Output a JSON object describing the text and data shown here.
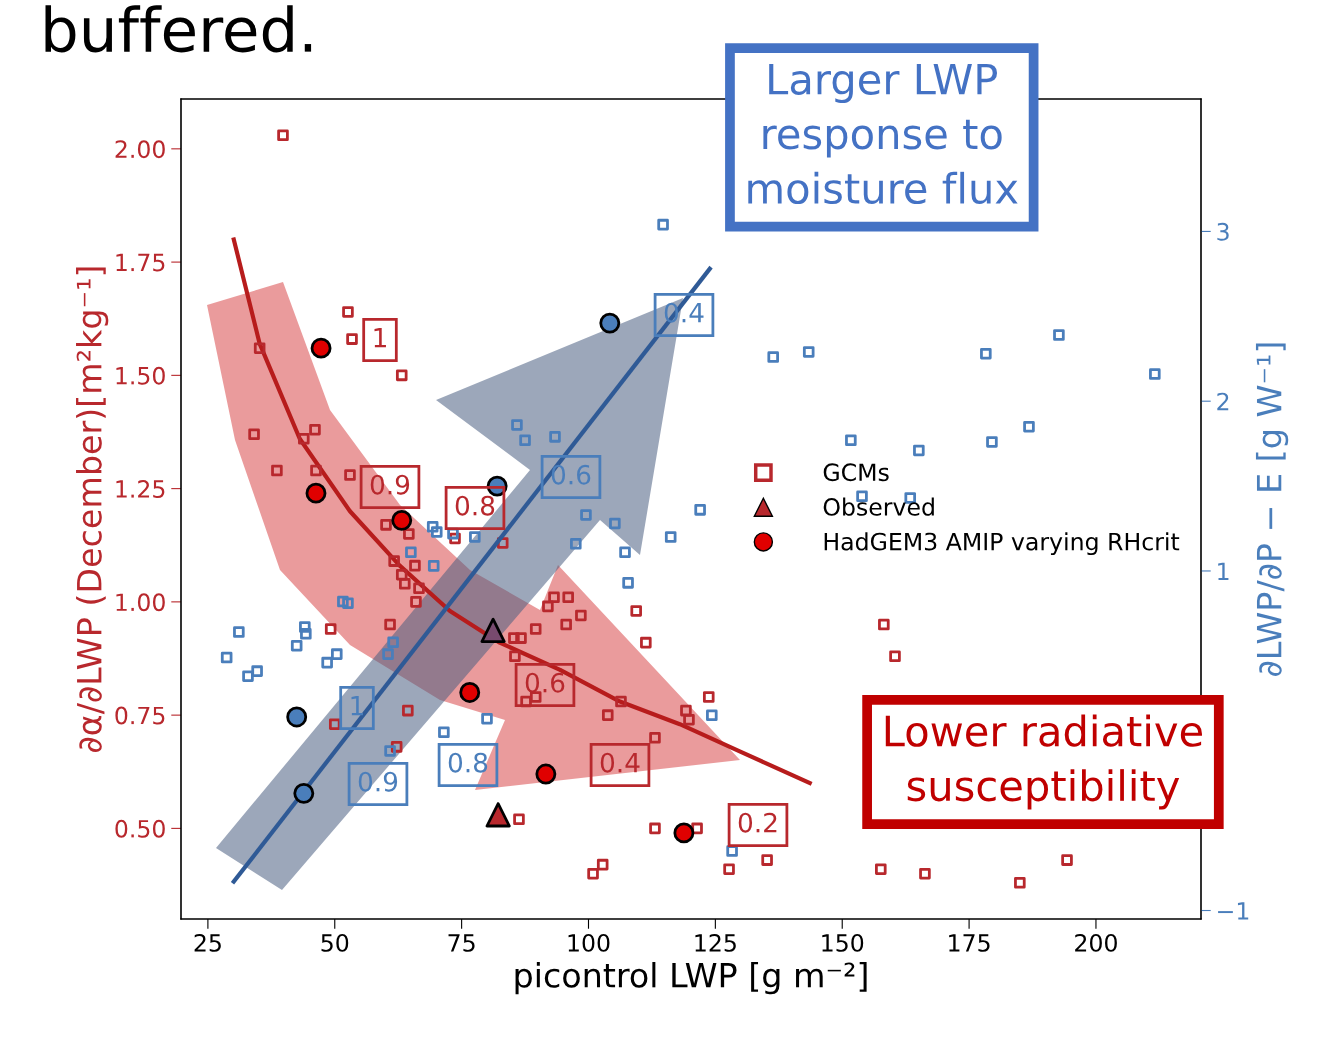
{
  "chart_data": {
    "type": "scatter",
    "xlabel": "picontrol LWP [g m⁻²]",
    "ylabel": "∂α/∂LWP (December)[m²kg⁻¹]",
    "y2label": "∂LWP/∂P − E [g W⁻¹]",
    "xlim": [
      19.7,
      220.7
    ],
    "xticks": [
      25,
      50,
      75,
      100,
      125,
      150,
      175,
      200
    ],
    "ylim": [
      0.3,
      2.11
    ],
    "yticks": [
      {
        "value": 0.5,
        "label": "0.50"
      },
      {
        "value": 0.75,
        "label": "0.75"
      },
      {
        "value": 1.0,
        "label": "1.00"
      },
      {
        "value": 1.25,
        "label": "1.25"
      },
      {
        "value": 1.5,
        "label": "1.50"
      },
      {
        "value": 1.75,
        "label": "1.75"
      },
      {
        "value": 2.0,
        "label": "2.00"
      }
    ],
    "y2lim": [
      -1.05,
      3.78
    ],
    "y2ticks": [
      {
        "value": -1,
        "label": "−1"
      },
      1,
      2,
      3
    ],
    "grid": false,
    "legend": "center right",
    "annotations": [
      "buffered.",
      "Larger LWP\nresponse to\nmoisture flux",
      "Lower radiative\nsusceptibility",
      "1",
      "0.9",
      "0.8",
      "0.6",
      "0.4",
      "0.2",
      "0.4",
      "0.6",
      "1",
      "0.9",
      "0.8"
    ],
    "series": [
      {
        "name": "GCMs",
        "marker": "square",
        "color": "#b8282d",
        "x": [
          39.8,
          52.6,
          53.4,
          63.2,
          35.2,
          34.1,
          46.1,
          43.9,
          38.6,
          46.3,
          53.0,
          60.1,
          64.6,
          61.7,
          65.8,
          63.2,
          63.8,
          66.6,
          66.0,
          60.9,
          49.2,
          73.7,
          83.1,
          85.3,
          86.7,
          89.6,
          85.5,
          92.0,
          93.2,
          96.0,
          98.5,
          95.6,
          109.4,
          111.3,
          87.7,
          89.6,
          106.4,
          103.8,
          113.1,
          119.2,
          119.8,
          64.4,
          50.0,
          62.2,
          86.3,
          113.1,
          100.9,
          102.8,
          123.7,
          158.2,
          160.4,
          121.4,
          127.7,
          135.2,
          157.6,
          166.3,
          185.0,
          194.3
        ],
        "values": [
          2.03,
          1.64,
          1.58,
          1.5,
          1.56,
          1.37,
          1.38,
          1.36,
          1.29,
          1.29,
          1.28,
          1.17,
          1.15,
          1.09,
          1.08,
          1.06,
          1.04,
          1.03,
          1.0,
          0.95,
          0.94,
          1.14,
          1.13,
          0.92,
          0.92,
          0.94,
          0.88,
          0.99,
          1.01,
          1.01,
          0.97,
          0.95,
          0.98,
          0.91,
          0.78,
          0.79,
          0.78,
          0.75,
          0.7,
          0.76,
          0.74,
          0.76,
          0.73,
          0.68,
          0.52,
          0.5,
          0.4,
          0.42,
          0.79,
          0.95,
          0.88,
          0.5,
          0.41,
          0.43,
          0.41,
          0.4,
          0.38,
          0.43
        ]
      },
      {
        "marker": "square",
        "axis": "y2",
        "color": "#4a7ebb",
        "x": [
          114.7,
          136.4,
          143.4,
          178.3,
          192.7,
          211.6,
          151.7,
          165.1,
          179.5,
          186.8,
          153.9,
          163.4,
          122.0,
          85.9,
          87.5,
          93.4,
          69.3,
          70.1,
          73.3,
          77.6,
          99.5,
          105.2,
          97.5,
          107.2,
          116.2,
          107.8,
          65.0,
          69.5,
          51.6,
          52.6,
          31.1,
          44.1,
          44.3,
          42.5,
          28.7,
          50.4,
          48.5,
          34.7,
          32.9,
          61.5,
          60.5,
          80.0,
          71.5,
          60.9,
          124.3,
          128.3
        ],
        "values": [
          3.04,
          2.26,
          2.29,
          2.28,
          2.39,
          2.16,
          1.77,
          1.71,
          1.76,
          1.85,
          1.44,
          1.43,
          1.36,
          1.86,
          1.77,
          1.79,
          1.26,
          1.23,
          1.22,
          1.2,
          1.33,
          1.28,
          1.16,
          1.11,
          1.2,
          0.93,
          1.11,
          1.03,
          0.82,
          0.81,
          0.64,
          0.67,
          0.63,
          0.56,
          0.49,
          0.51,
          0.46,
          0.41,
          0.38,
          0.58,
          0.51,
          0.13,
          0.05,
          -0.06,
          0.15,
          -0.65
        ]
      },
      {
        "name": "Observed",
        "marker": "triangle",
        "color": "#b8282d",
        "x": [
          82.2
        ],
        "values": [
          0.53
        ]
      },
      {
        "marker": "triangle",
        "axis": "y2",
        "color": "#784a6e",
        "x": [
          81.2
        ],
        "values": [
          0.65
        ]
      },
      {
        "name": "HadGEM3 AMIP varying RHcrit",
        "marker": "circle",
        "color": "#e00000",
        "x": [
          47.3,
          46.3,
          63.2,
          76.6,
          91.6,
          118.8
        ],
        "values": [
          1.56,
          1.24,
          1.18,
          0.8,
          0.62,
          0.49
        ]
      },
      {
        "marker": "circle",
        "axis": "y2",
        "color": "#4a7ebb",
        "x": [
          104.2,
          82.0,
          42.5,
          43.9
        ],
        "values": [
          2.46,
          1.5,
          0.14,
          -0.31
        ]
      },
      {
        "type": "line",
        "line_style": "solid",
        "color": "#b71c1c",
        "x": [
          30.1,
          35.2,
          43.1,
          53.0,
          62.8,
          72.7,
          82.5,
          94.4,
          106.2,
          118.0,
          129.8,
          143.6
        ],
        "values": [
          1.8,
          1.57,
          1.36,
          1.2,
          1.08,
          0.98,
          0.91,
          0.85,
          0.78,
          0.73,
          0.67,
          0.6
        ]
      },
      {
        "type": "line",
        "line_style": "solid",
        "axis": "y2",
        "color": "#2f5a96",
        "x": [
          30.1,
          123.9
        ],
        "values": [
          -0.83,
          2.78
        ]
      }
    ]
  }
}
